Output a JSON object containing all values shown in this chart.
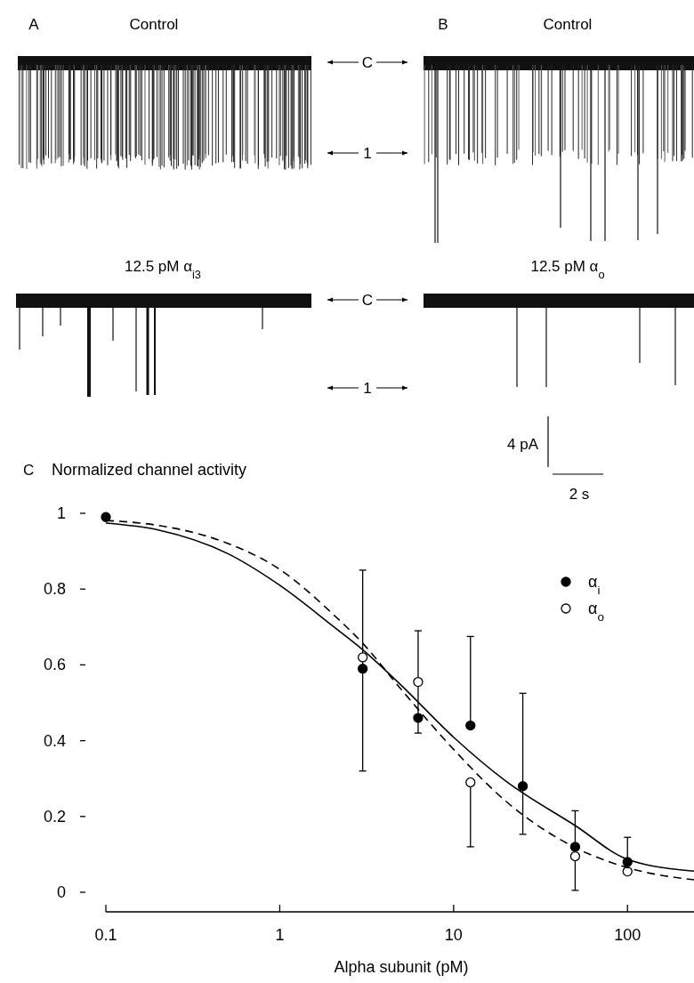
{
  "chart_data": [
    {
      "type": "other",
      "annotations": [
        "A",
        "Control",
        "B",
        "Control",
        "12.5 pM α$_{i3}$",
        "12.5 pM α$_{o}$",
        "C",
        "1",
        "C",
        "1",
        "4 pA",
        "2 s"
      ]
    },
    {
      "type": "scatter",
      "ylabel": "Normalized channel activity",
      "xlabel": "Alpha subunit (pM)",
      "annotations": [
        "C"
      ],
      "log": "x",
      "xlim": [
        0.1,
        250
      ],
      "xticks": [
        0.1,
        1,
        10,
        100
      ],
      "ylim": [
        0,
        1
      ],
      "yticks": [
        0,
        0.2,
        0.4,
        0.6,
        0.8,
        1
      ],
      "grid": false,
      "legend": "top right",
      "marker": "circle",
      "series": [
        {
          "name": "α$_{i}$",
          "type": "scatter",
          "color": "#000000",
          "x": [
            0.1,
            3,
            6.25,
            12.5,
            25,
            50,
            100
          ],
          "values": [
            0.99,
            0.59,
            0.46,
            0.44,
            0.28,
            0.12,
            0.08
          ],
          "errors": [
            null,
            [
              0.32,
              0.85
            ],
            null,
            [
              0.44,
              0.675
            ],
            [
              0.153,
              0.525
            ],
            [
              0.005,
              0.215
            ],
            [
              0.076,
              0.145
            ]
          ]
        },
        {
          "name": "α$_{o}$",
          "type": "scatter",
          "color": "#ffffff",
          "x": [
            3,
            6.25,
            12.5,
            50,
            100
          ],
          "values": [
            0.62,
            0.555,
            0.29,
            0.095,
            0.055
          ],
          "errors": [
            null,
            [
              0.42,
              0.69
            ],
            [
              0.12,
              0.29
            ],
            null,
            null
          ]
        },
        {
          "type": "line",
          "color": "#000000",
          "line_style": "solid",
          "marker": "none",
          "x": [
            0.1,
            0.2,
            0.5,
            1,
            2,
            3,
            5,
            10,
            20,
            50,
            100,
            250
          ],
          "values": [
            0.974,
            0.956,
            0.894,
            0.81,
            0.704,
            0.64,
            0.546,
            0.409,
            0.293,
            0.176,
            0.087,
            0.055
          ]
        },
        {
          "type": "line",
          "color": "#000000",
          "line_style": "dashed",
          "marker": "none",
          "x": [
            0.1,
            0.2,
            0.5,
            1,
            2,
            3,
            5,
            10,
            20,
            50,
            100,
            250
          ],
          "values": [
            0.981,
            0.968,
            0.921,
            0.852,
            0.736,
            0.657,
            0.535,
            0.377,
            0.24,
            0.118,
            0.065,
            0.032
          ]
        }
      ]
    }
  ]
}
